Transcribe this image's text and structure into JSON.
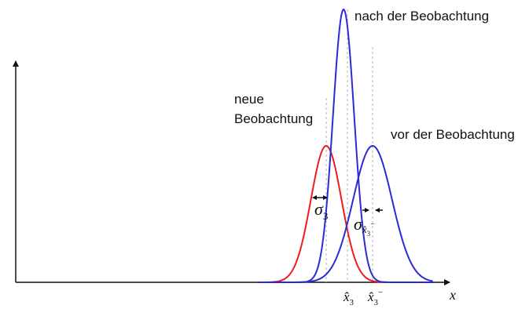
{
  "chart_data": {
    "type": "line",
    "title": "",
    "xlabel": "x",
    "ylabel": "",
    "series": [
      {
        "key": "obs",
        "name": "neue Beobachtung",
        "color": "#ee1c1c",
        "mean": 0.0,
        "sigma": 0.33,
        "height": 0.5
      },
      {
        "key": "prior",
        "name": "vor der Beobachtung",
        "color": "#2b2bd6",
        "mean": 1.0,
        "sigma": 0.42,
        "height": 0.5
      },
      {
        "key": "post",
        "name": "nach der Beobachtung",
        "color": "#2b2bd6",
        "mean": 0.375,
        "sigma": 0.23,
        "height": 1.0
      }
    ],
    "legend": {
      "obs_line1": "neue",
      "obs_line2": "Beobachtung",
      "prior": "vor der Beobachtung",
      "post": "nach der Beobachtung"
    },
    "annotations": {
      "sigma_obs": {
        "symbol": "σ",
        "sub": "3"
      },
      "sigma_prior": {
        "symbol": "σ",
        "sub": "x̂",
        "subsub": "3",
        "sup": "−"
      },
      "tick_post": {
        "base": "x̂",
        "sub": "3"
      },
      "tick_prior": {
        "base": "x̂",
        "sub": "3",
        "sup": "−"
      }
    }
  }
}
